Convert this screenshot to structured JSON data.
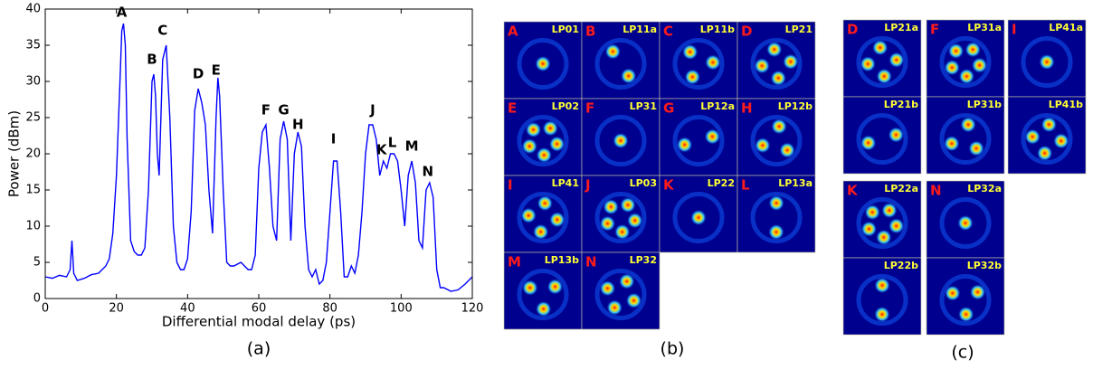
{
  "chart_data": {
    "type": "line",
    "caption": "(a)",
    "x_label": "Differential modal delay (ps)",
    "y_label": "Power (dBm)",
    "x": [
      0,
      2,
      4,
      6,
      7,
      7.5,
      8,
      9,
      11,
      13,
      15,
      17,
      18,
      19,
      20,
      21,
      21.5,
      22,
      22.5,
      23,
      24,
      25,
      26,
      27,
      28,
      29,
      30,
      30.5,
      31,
      31.5,
      32,
      33,
      34,
      35,
      36,
      37,
      38,
      39,
      40,
      41,
      42,
      43,
      44,
      45,
      46,
      47,
      48,
      48.5,
      49,
      50,
      51,
      52,
      53,
      55,
      57,
      58,
      59,
      60,
      61,
      62,
      63,
      64,
      65,
      66,
      67,
      68,
      69,
      70,
      71,
      72,
      73,
      74,
      75,
      76,
      77,
      78,
      79,
      80,
      81,
      82,
      83,
      84,
      85,
      86,
      87,
      88,
      89,
      90,
      91,
      92,
      93,
      94,
      95,
      96,
      97,
      98,
      99,
      100,
      101,
      102,
      103,
      104,
      105,
      106,
      107,
      108,
      109,
      110,
      111,
      112,
      114,
      116,
      118,
      120
    ],
    "series": [
      {
        "color": "#0000ff",
        "values": [
          3,
          2.8,
          3.2,
          3,
          4,
          8,
          3.5,
          2.5,
          2.8,
          3.3,
          3.5,
          4.5,
          5.5,
          9,
          17,
          30,
          37,
          38,
          35,
          22,
          8,
          6.5,
          6,
          6,
          7,
          15,
          30,
          31,
          28,
          20,
          17,
          33,
          35,
          25,
          10,
          5,
          4,
          4,
          5.5,
          12,
          26,
          29,
          27,
          24,
          15,
          9,
          25,
          30.5,
          28,
          15,
          5,
          4.5,
          4.5,
          5,
          4,
          4,
          6,
          18,
          23,
          24,
          18,
          10,
          8,
          22,
          24.5,
          22,
          8,
          20,
          23,
          21,
          10,
          4,
          3,
          4,
          2,
          2.5,
          5,
          12,
          19,
          19,
          12,
          3,
          3,
          4.5,
          3.5,
          6,
          12,
          20,
          24,
          24,
          22,
          17,
          19,
          18,
          20,
          20,
          19,
          15,
          10,
          17,
          19,
          16,
          8,
          7,
          15,
          16,
          14,
          4,
          1.5,
          1.5,
          1,
          1.2,
          2,
          3
        ]
      }
    ],
    "annotations": [
      {
        "text": "A",
        "x": 21.5,
        "y": 38.5
      },
      {
        "text": "B",
        "x": 30,
        "y": 32
      },
      {
        "text": "C",
        "x": 33,
        "y": 36
      },
      {
        "text": "D",
        "x": 43,
        "y": 30
      },
      {
        "text": "E",
        "x": 48,
        "y": 30.5
      },
      {
        "text": "F",
        "x": 62,
        "y": 25
      },
      {
        "text": "G",
        "x": 67,
        "y": 25
      },
      {
        "text": "H",
        "x": 71,
        "y": 23
      },
      {
        "text": "I",
        "x": 81,
        "y": 21
      },
      {
        "text": "J",
        "x": 92,
        "y": 25
      },
      {
        "text": "K",
        "x": 94.5,
        "y": 19.5
      },
      {
        "text": "L",
        "x": 97.5,
        "y": 20.5
      },
      {
        "text": "M",
        "x": 103,
        "y": 20
      },
      {
        "text": "N",
        "x": 107.5,
        "y": 16.5
      }
    ],
    "xlim": [
      0,
      120
    ],
    "xticks": [
      0,
      20,
      40,
      60,
      80,
      100,
      120
    ],
    "ylim": [
      0,
      40
    ],
    "yticks": [
      0,
      5,
      10,
      15,
      20,
      25,
      30,
      35,
      40
    ]
  },
  "panel_b": {
    "caption": "(b)",
    "tiles": [
      {
        "letter": "A",
        "mode": "LP01"
      },
      {
        "letter": "B",
        "mode": "LP11a"
      },
      {
        "letter": "C",
        "mode": "LP11b"
      },
      {
        "letter": "D",
        "mode": "LP21"
      },
      {
        "letter": "E",
        "mode": "LP02"
      },
      {
        "letter": "F",
        "mode": "LP31"
      },
      {
        "letter": "G",
        "mode": "LP12a"
      },
      {
        "letter": "H",
        "mode": "LP12b"
      },
      {
        "letter": "I",
        "mode": "LP41"
      },
      {
        "letter": "J",
        "mode": "LP03"
      },
      {
        "letter": "K",
        "mode": "LP22"
      },
      {
        "letter": "L",
        "mode": "LP13a"
      },
      {
        "letter": "M",
        "mode": "LP13b"
      },
      {
        "letter": "N",
        "mode": "LP32"
      }
    ]
  },
  "panel_c": {
    "caption": "(c)",
    "tiles": [
      {
        "letter": "D",
        "mode": "LP21a"
      },
      {
        "letter": "F",
        "mode": "LP31a"
      },
      {
        "letter": "I",
        "mode": "LP41a"
      },
      {
        "mode": "LP21b"
      },
      {
        "mode": "LP31b"
      },
      {
        "mode": "LP41b"
      },
      {
        "letter": "K",
        "mode": "LP22a"
      },
      {
        "letter": "N",
        "mode": "LP32a"
      },
      {
        "mode": "LP22b"
      },
      {
        "mode": "LP32b"
      }
    ]
  }
}
